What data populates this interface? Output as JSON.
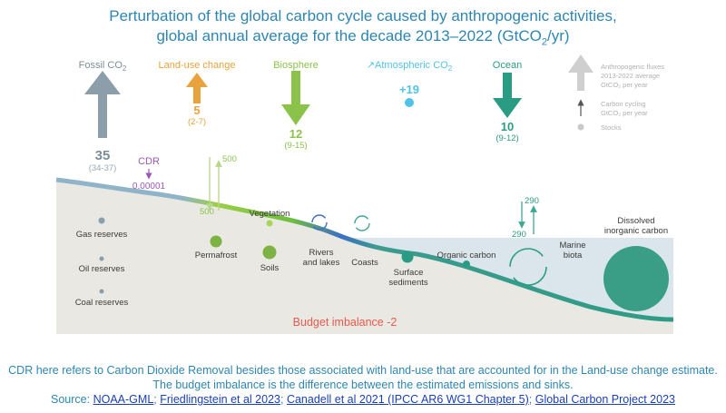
{
  "title": {
    "line1": "Perturbation of the global carbon cycle caused by anthropogenic activities,",
    "line2_prefix": "global annual average for the decade 2013–2022 (GtCO",
    "line2_sub": "2",
    "line2_suffix": "/yr)"
  },
  "fluxes": {
    "fossil": {
      "label_main": "Fossil CO",
      "label_sub": "2",
      "value": "35",
      "range": "(34-37)",
      "color": "#8b9eaa"
    },
    "land_use": {
      "label": "Land-use change",
      "value": "5",
      "range": "(2-7)",
      "color": "#e8a33d"
    },
    "biosphere": {
      "label": "Biosphere",
      "value": "12",
      "range": "(9-15)",
      "color": "#8bc34a"
    },
    "atmospheric": {
      "label_main": "Atmospheric CO",
      "label_sub": "2",
      "value": "+19",
      "color": "#4fc3e8"
    },
    "ocean": {
      "label": "Ocean",
      "value": "10",
      "range": "(9-12)",
      "color": "#2b9c84"
    },
    "cdr": {
      "label": "CDR",
      "value": "0.00001",
      "color": "#9b59b6"
    }
  },
  "cycling": {
    "land_up": "500",
    "land_down": "500",
    "ocean_up": "290",
    "ocean_down": "290"
  },
  "legend": {
    "anthropogenic": [
      "Anthropogenic fluxes",
      "2013-2022 average",
      "GtCO₂ per year"
    ],
    "cycling": [
      "Carbon cycling",
      "GtCO₂ per year"
    ],
    "stocks": "Stocks"
  },
  "stocks": {
    "gas": "Gas reserves",
    "oil": "Oil reserves",
    "coal": "Coal reserves",
    "permafrost": "Permafrost",
    "soils": "Soils",
    "vegetation": "Vegetation",
    "rivers1": "Rivers",
    "rivers2": "and lakes",
    "coasts": "Coasts",
    "surface1": "Surface",
    "surface2": "sediments",
    "organic": "Organic carbon",
    "marine1": "Marine",
    "marine2": "biota",
    "dissolved1": "Dissolved",
    "dissolved2": "inorganic carbon"
  },
  "budget": "Budget imbalance -2",
  "footer": {
    "line1": "CDR here refers to Carbon Dioxide Removal besides those associated with land-use that are accounted for in the Land-use change estimate.",
    "line2": "The budget imbalance is the difference between the estimated emissions and sinks.",
    "source_label": "Source:",
    "sources": [
      "NOAA-GML",
      "Friedlingstein et al 2023",
      "Canadell et al 2021 (IPCC AR6 WG1 Chapter 5)",
      "Global Carbon Project 2023"
    ],
    "sep": ";"
  }
}
